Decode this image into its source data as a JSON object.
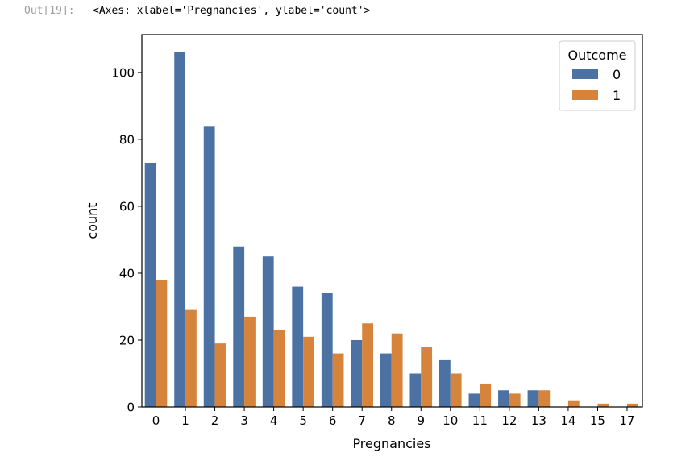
{
  "output": {
    "prompt": "Out[19]:",
    "text": "<Axes: xlabel='Pregnancies', ylabel='count'>"
  },
  "chart_data": {
    "type": "bar",
    "xlabel": "Pregnancies",
    "ylabel": "count",
    "categories": [
      "0",
      "1",
      "2",
      "3",
      "4",
      "5",
      "6",
      "7",
      "8",
      "9",
      "10",
      "11",
      "12",
      "13",
      "14",
      "15",
      "17"
    ],
    "yticks": [
      0,
      20,
      40,
      60,
      80,
      100
    ],
    "ylim": [
      0,
      111.3
    ],
    "grid": false,
    "legend": {
      "title": "Outcome",
      "placement": "top-right"
    },
    "series": [
      {
        "name": "0",
        "color": "#4c72a4",
        "values": [
          73,
          106,
          84,
          48,
          45,
          36,
          34,
          20,
          16,
          10,
          14,
          4,
          5,
          5,
          0,
          0,
          0
        ]
      },
      {
        "name": "1",
        "color": "#d6843b",
        "values": [
          38,
          29,
          19,
          27,
          23,
          21,
          16,
          25,
          22,
          18,
          10,
          7,
          4,
          5,
          2,
          1,
          1
        ]
      }
    ]
  }
}
